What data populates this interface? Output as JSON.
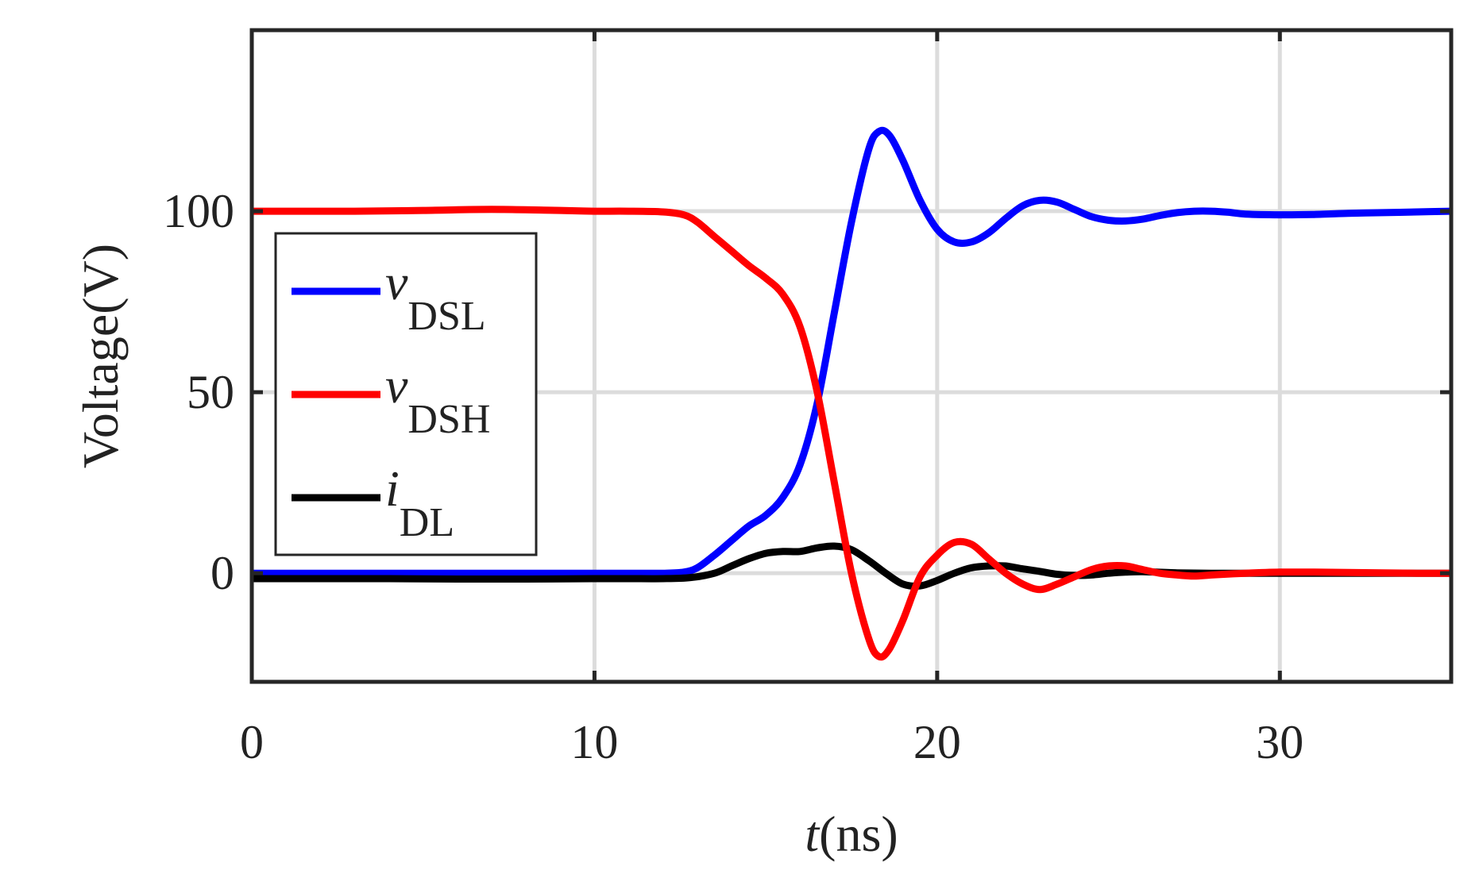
{
  "chart_data": {
    "type": "line",
    "xlabel": {
      "italic": "t",
      "rest": "(ns)"
    },
    "ylabel": "Voltage(V)",
    "xlim": [
      0,
      35
    ],
    "ylim": [
      -30,
      150
    ],
    "xticks": [
      0,
      10,
      20,
      30
    ],
    "yticks": [
      0,
      50,
      100
    ],
    "xtick_labels": [
      "0",
      "10",
      "20",
      "30"
    ],
    "ytick_labels": [
      "0",
      "50",
      "100"
    ],
    "grid": true,
    "legend_position": "left",
    "series": [
      {
        "name": "v_DSL",
        "legend_main": "v",
        "legend_sub": "DSL",
        "color": "#0000ff",
        "points": [
          [
            0,
            0
          ],
          [
            2,
            0
          ],
          [
            4,
            0
          ],
          [
            6,
            0
          ],
          [
            8,
            0
          ],
          [
            10,
            0
          ],
          [
            11,
            0
          ],
          [
            12,
            0
          ],
          [
            12.6,
            0.3
          ],
          [
            13,
            1.5
          ],
          [
            13.5,
            5
          ],
          [
            14,
            9
          ],
          [
            14.5,
            13
          ],
          [
            15,
            16
          ],
          [
            15.5,
            21
          ],
          [
            16,
            30
          ],
          [
            16.5,
            47
          ],
          [
            17,
            72
          ],
          [
            17.5,
            97
          ],
          [
            18,
            117
          ],
          [
            18.3,
            122
          ],
          [
            18.6,
            121
          ],
          [
            19,
            114
          ],
          [
            19.5,
            103
          ],
          [
            20,
            95
          ],
          [
            20.5,
            91.5
          ],
          [
            21,
            91.5
          ],
          [
            21.5,
            94
          ],
          [
            22,
            98
          ],
          [
            22.5,
            101.5
          ],
          [
            23,
            103
          ],
          [
            23.5,
            102.5
          ],
          [
            24,
            100.5
          ],
          [
            24.5,
            98.5
          ],
          [
            25,
            97.5
          ],
          [
            25.5,
            97.3
          ],
          [
            26,
            97.8
          ],
          [
            26.5,
            98.8
          ],
          [
            27,
            99.6
          ],
          [
            27.5,
            100
          ],
          [
            28,
            100
          ],
          [
            28.5,
            99.7
          ],
          [
            29,
            99.2
          ],
          [
            30,
            99
          ],
          [
            31,
            99.1
          ],
          [
            32,
            99.4
          ],
          [
            33,
            99.6
          ],
          [
            34,
            99.8
          ],
          [
            35,
            100
          ]
        ]
      },
      {
        "name": "v_DSH",
        "legend_main": "v",
        "legend_sub": "DSH",
        "color": "#ff0000",
        "points": [
          [
            0,
            100
          ],
          [
            3,
            100
          ],
          [
            5,
            100.2
          ],
          [
            7,
            100.5
          ],
          [
            9,
            100.2
          ],
          [
            10,
            100
          ],
          [
            11,
            100
          ],
          [
            12,
            99.8
          ],
          [
            12.6,
            99
          ],
          [
            13,
            97
          ],
          [
            13.5,
            93
          ],
          [
            14,
            89
          ],
          [
            14.5,
            85
          ],
          [
            15,
            81.5
          ],
          [
            15.5,
            77
          ],
          [
            16,
            68
          ],
          [
            16.5,
            50
          ],
          [
            17,
            25
          ],
          [
            17.5,
            0
          ],
          [
            18,
            -18
          ],
          [
            18.3,
            -23
          ],
          [
            18.6,
            -21
          ],
          [
            19,
            -13
          ],
          [
            19.5,
            -1
          ],
          [
            20,
            5
          ],
          [
            20.5,
            8.5
          ],
          [
            21,
            8
          ],
          [
            21.5,
            4
          ],
          [
            22,
            0
          ],
          [
            22.5,
            -3
          ],
          [
            23,
            -4.5
          ],
          [
            23.5,
            -3
          ],
          [
            24,
            -1
          ],
          [
            24.5,
            1
          ],
          [
            25,
            2
          ],
          [
            25.5,
            2
          ],
          [
            26,
            1
          ],
          [
            26.5,
            0
          ],
          [
            27,
            -0.5
          ],
          [
            27.5,
            -0.8
          ],
          [
            28,
            -0.5
          ],
          [
            29,
            0
          ],
          [
            30,
            0.3
          ],
          [
            31,
            0.3
          ],
          [
            32,
            0.2
          ],
          [
            33,
            0.1
          ],
          [
            34,
            0
          ],
          [
            35,
            0
          ]
        ]
      },
      {
        "name": "i_DL",
        "legend_main": "i",
        "legend_sub": "DL",
        "color": "#000000",
        "points": [
          [
            0,
            -1.5
          ],
          [
            2,
            -1.5
          ],
          [
            4,
            -1.5
          ],
          [
            6,
            -1.6
          ],
          [
            8,
            -1.6
          ],
          [
            10,
            -1.5
          ],
          [
            11,
            -1.5
          ],
          [
            12,
            -1.5
          ],
          [
            12.8,
            -1.2
          ],
          [
            13.5,
            0
          ],
          [
            14,
            2
          ],
          [
            14.5,
            4
          ],
          [
            15,
            5.5
          ],
          [
            15.5,
            6
          ],
          [
            16,
            6
          ],
          [
            16.5,
            7
          ],
          [
            17,
            7.5
          ],
          [
            17.5,
            6.5
          ],
          [
            18,
            3.5
          ],
          [
            18.5,
            0
          ],
          [
            19,
            -3
          ],
          [
            19.5,
            -3.5
          ],
          [
            20,
            -2
          ],
          [
            20.5,
            0
          ],
          [
            21,
            1.5
          ],
          [
            21.5,
            2
          ],
          [
            22,
            2
          ],
          [
            22.5,
            1.2
          ],
          [
            23,
            0.5
          ],
          [
            23.5,
            -0.3
          ],
          [
            24,
            -0.6
          ],
          [
            24.5,
            -0.5
          ],
          [
            25,
            0
          ],
          [
            25.5,
            0.3
          ],
          [
            26,
            0.4
          ],
          [
            27,
            0.1
          ],
          [
            28,
            0
          ],
          [
            29,
            0
          ],
          [
            30,
            0
          ],
          [
            32,
            0
          ],
          [
            34,
            0
          ],
          [
            35,
            0
          ]
        ]
      }
    ]
  }
}
